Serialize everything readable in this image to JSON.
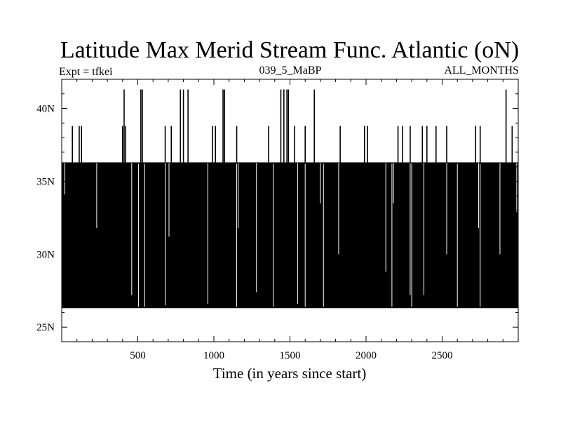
{
  "chart_data": {
    "type": "line",
    "title": "Latitude Max Merid Stream Func. Atlantic (oN)",
    "subtitle_left": "Expt = tfkei",
    "subtitle_center": "039_5_MaBP",
    "subtitle_right": "ALL_MONTHS",
    "xlabel": "Time (in years since start)",
    "ylabel": "",
    "xlim": [
      0,
      3000
    ],
    "ylim": [
      24,
      42
    ],
    "x_ticks": [
      500,
      1000,
      1500,
      2000,
      2500
    ],
    "x_tick_labels": [
      "500",
      "1000",
      "1500",
      "2000",
      "2500"
    ],
    "y_ticks": [
      25,
      30,
      35,
      40
    ],
    "y_tick_labels": [
      "25N",
      "30N",
      "35N",
      "40N"
    ],
    "series": [
      {
        "color": "#000000",
        "baseline_low": 26.3,
        "baseline_high": 36.3,
        "description_values": {
          "dense_band_min": 26.3,
          "dense_band_max": 36.3
        },
        "spikes": [
          {
            "x": 70,
            "y": 38.8
          },
          {
            "x": 115,
            "y": 38.8
          },
          {
            "x": 130,
            "y": 38.8
          },
          {
            "x": 400,
            "y": 38.8
          },
          {
            "x": 410,
            "y": 41.3
          },
          {
            "x": 420,
            "y": 38.8
          },
          {
            "x": 520,
            "y": 41.3
          },
          {
            "x": 530,
            "y": 41.3
          },
          {
            "x": 680,
            "y": 38.8
          },
          {
            "x": 720,
            "y": 38.8
          },
          {
            "x": 780,
            "y": 41.3
          },
          {
            "x": 800,
            "y": 41.3
          },
          {
            "x": 830,
            "y": 41.3
          },
          {
            "x": 990,
            "y": 38.8
          },
          {
            "x": 1010,
            "y": 38.8
          },
          {
            "x": 1060,
            "y": 41.3
          },
          {
            "x": 1070,
            "y": 41.3
          },
          {
            "x": 1150,
            "y": 38.8
          },
          {
            "x": 1360,
            "y": 38.8
          },
          {
            "x": 1440,
            "y": 41.3
          },
          {
            "x": 1460,
            "y": 41.3
          },
          {
            "x": 1480,
            "y": 41.3
          },
          {
            "x": 1490,
            "y": 41.3
          },
          {
            "x": 1530,
            "y": 38.8
          },
          {
            "x": 1600,
            "y": 38.8
          },
          {
            "x": 1660,
            "y": 41.3
          },
          {
            "x": 1830,
            "y": 38.8
          },
          {
            "x": 1990,
            "y": 38.8
          },
          {
            "x": 2010,
            "y": 38.8
          },
          {
            "x": 2210,
            "y": 38.8
          },
          {
            "x": 2240,
            "y": 38.8
          },
          {
            "x": 2290,
            "y": 38.8
          },
          {
            "x": 2370,
            "y": 38.8
          },
          {
            "x": 2400,
            "y": 38.8
          },
          {
            "x": 2460,
            "y": 38.8
          },
          {
            "x": 2530,
            "y": 38.8
          },
          {
            "x": 2720,
            "y": 38.8
          },
          {
            "x": 2750,
            "y": 38.8
          },
          {
            "x": 2920,
            "y": 41.3
          },
          {
            "x": 2960,
            "y": 38.8
          }
        ],
        "dips": [
          {
            "x": 20,
            "y": 34.1
          },
          {
            "x": 230,
            "y": 31.8
          },
          {
            "x": 460,
            "y": 27.2
          },
          {
            "x": 680,
            "y": 26.5
          },
          {
            "x": 705,
            "y": 31.2
          },
          {
            "x": 960,
            "y": 26.6
          },
          {
            "x": 1160,
            "y": 31.8
          },
          {
            "x": 1280,
            "y": 27.4
          },
          {
            "x": 1550,
            "y": 26.6
          },
          {
            "x": 1700,
            "y": 33.5
          },
          {
            "x": 1820,
            "y": 30.0
          },
          {
            "x": 2130,
            "y": 28.8
          },
          {
            "x": 2180,
            "y": 33.5
          },
          {
            "x": 2290,
            "y": 27.2
          },
          {
            "x": 2380,
            "y": 27.2
          },
          {
            "x": 2530,
            "y": 30.0
          },
          {
            "x": 2740,
            "y": 31.8
          },
          {
            "x": 2880,
            "y": 30.0
          },
          {
            "x": 2990,
            "y": 32.9
          }
        ],
        "gaps": [
          505,
          545,
          1150,
          1390,
          1600,
          1720,
          2170,
          2300,
          2600,
          2750
        ]
      }
    ]
  }
}
